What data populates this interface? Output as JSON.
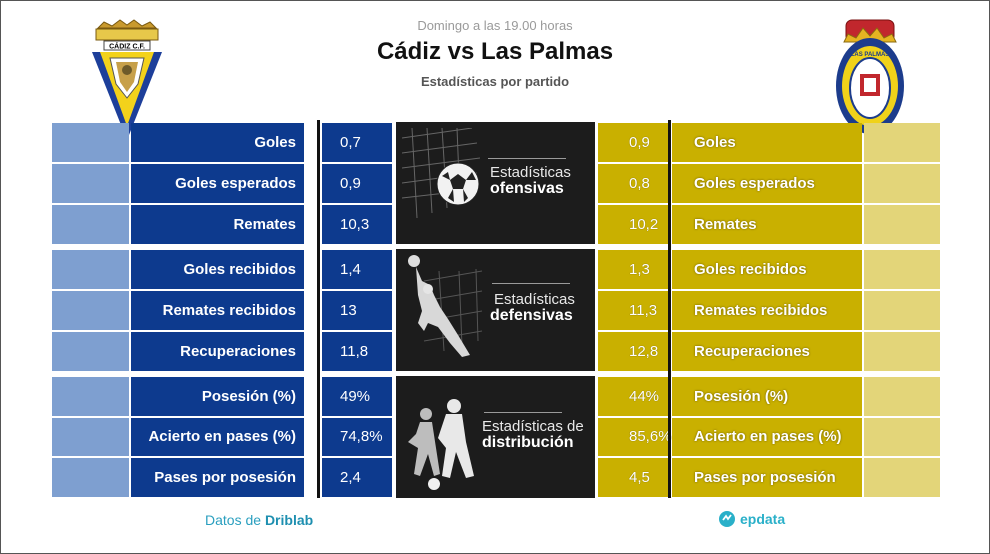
{
  "header": {
    "subtitle": "Domingo a las 19.00 horas",
    "title": "Cádiz vs Las Palmas",
    "description": "Estadísticas por partido"
  },
  "colors": {
    "home": "#0d3a8e",
    "away": "#c9b000",
    "panel": "#1c1c1c"
  },
  "home_crest": {
    "text": "CÁDIZ C.F."
  },
  "away_crest": {
    "text": "U.D. LAS PALMAS"
  },
  "stats": [
    {
      "label": "Goles",
      "home": "0,7",
      "away": "0,9"
    },
    {
      "label": "Goles esperados",
      "home": "0,9",
      "away": "0,8"
    },
    {
      "label": "Remates",
      "home": "10,3",
      "away": "10,2"
    },
    {
      "label": "Goles recibidos",
      "home": "1,4",
      "away": "1,3"
    },
    {
      "label": "Remates recibidos",
      "home": "13",
      "away": "11,3"
    },
    {
      "label": "Recuperaciones",
      "home": "11,8",
      "away": "12,8"
    },
    {
      "label": "Posesión (%)",
      "home": "49%",
      "away": "44%"
    },
    {
      "label": "Acierto en pases (%)",
      "home": "74,8%",
      "away": "85,6%"
    },
    {
      "label": "Pases por posesión",
      "home": "2,4",
      "away": "4,5"
    }
  ],
  "panels": [
    {
      "line1": "Estadísticas",
      "line2": "ofensivas",
      "icon": "soccer-ball-net-icon"
    },
    {
      "line1": "Estadísticas",
      "line2": "defensivas",
      "icon": "goalkeeper-icon"
    },
    {
      "line1": "Estadísticas de",
      "line2": "distribución",
      "icon": "players-icon"
    }
  ],
  "footer": {
    "source_prefix": "Datos de",
    "source_name": "Driblab",
    "brand": "epdata"
  }
}
